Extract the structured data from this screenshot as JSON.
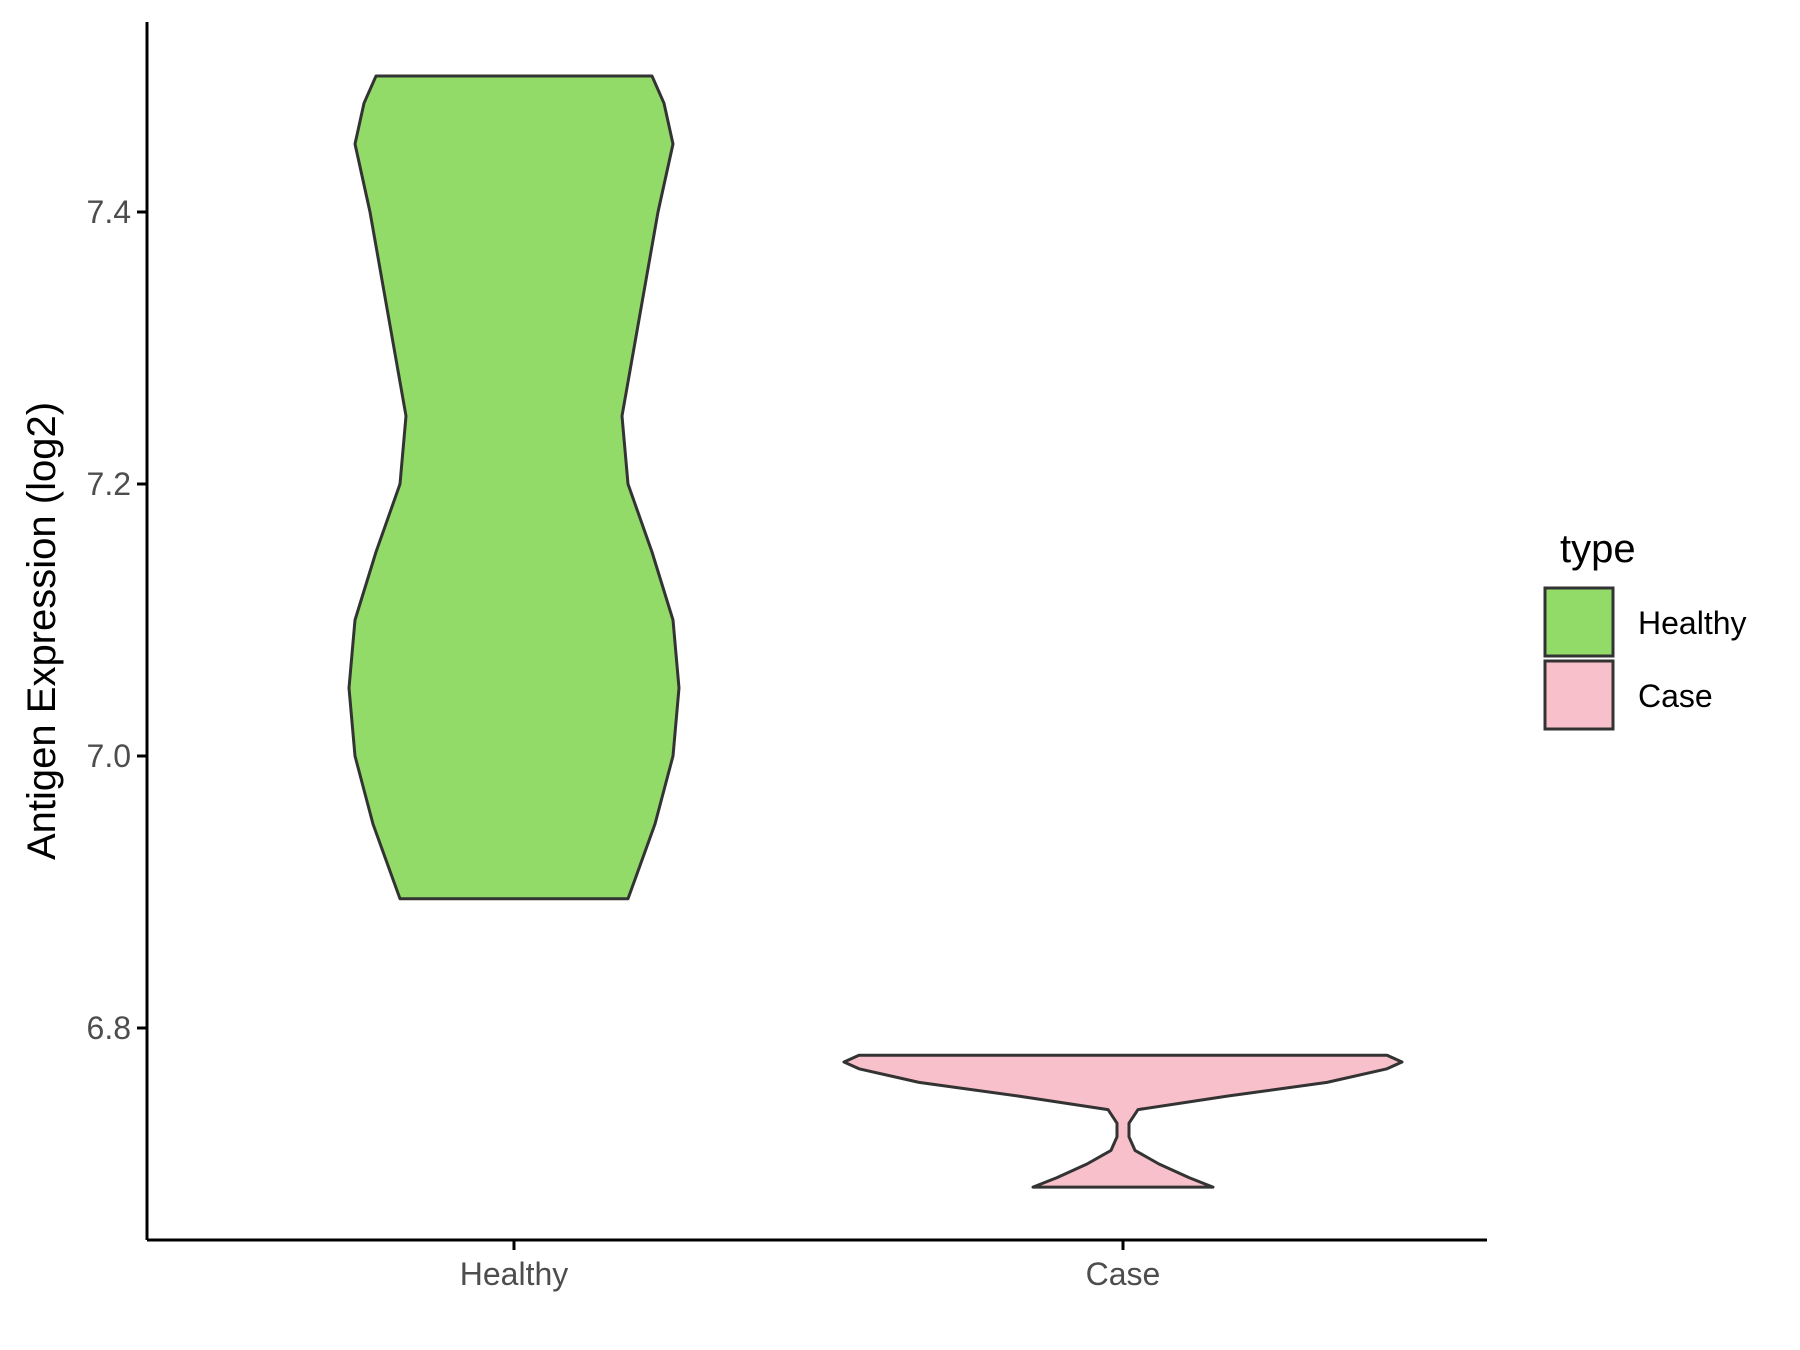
{
  "chart_data": {
    "type": "violin",
    "title": "",
    "xlabel": "",
    "ylabel": "Antigen Expression (log2)",
    "categories": [
      "Healthy",
      "Case"
    ],
    "ylim": [
      6.65,
      7.55
    ],
    "yticks": [
      6.8,
      7.0,
      7.2,
      7.4
    ],
    "ytick_labels": [
      "6.8",
      "7.0",
      "7.2",
      "7.4"
    ],
    "grid": false,
    "legend": {
      "title": "type",
      "placement": "right",
      "entries": [
        {
          "label": "Healthy",
          "color": "#93DB69"
        },
        {
          "label": "Case",
          "color": "#F8C0CB"
        }
      ]
    },
    "series": [
      {
        "category": "Healthy",
        "color": "#93DB69",
        "min": 6.895,
        "max": 7.5,
        "density": [
          [
            6.895,
            0.38
          ],
          [
            6.95,
            0.47
          ],
          [
            7.0,
            0.53
          ],
          [
            7.05,
            0.55
          ],
          [
            7.1,
            0.53
          ],
          [
            7.15,
            0.46
          ],
          [
            7.2,
            0.38
          ],
          [
            7.25,
            0.36
          ],
          [
            7.3,
            0.4
          ],
          [
            7.35,
            0.44
          ],
          [
            7.4,
            0.48
          ],
          [
            7.45,
            0.53
          ],
          [
            7.48,
            0.5
          ],
          [
            7.5,
            0.46
          ]
        ]
      },
      {
        "category": "Case",
        "color": "#F8C0CB",
        "min": 6.683,
        "max": 6.78,
        "density": [
          [
            6.683,
            0.3
          ],
          [
            6.69,
            0.22
          ],
          [
            6.7,
            0.12
          ],
          [
            6.71,
            0.04
          ],
          [
            6.72,
            0.02
          ],
          [
            6.73,
            0.02
          ],
          [
            6.74,
            0.05
          ],
          [
            6.75,
            0.35
          ],
          [
            6.76,
            0.68
          ],
          [
            6.77,
            0.88
          ],
          [
            6.775,
            0.93
          ],
          [
            6.78,
            0.88
          ]
        ]
      }
    ]
  }
}
